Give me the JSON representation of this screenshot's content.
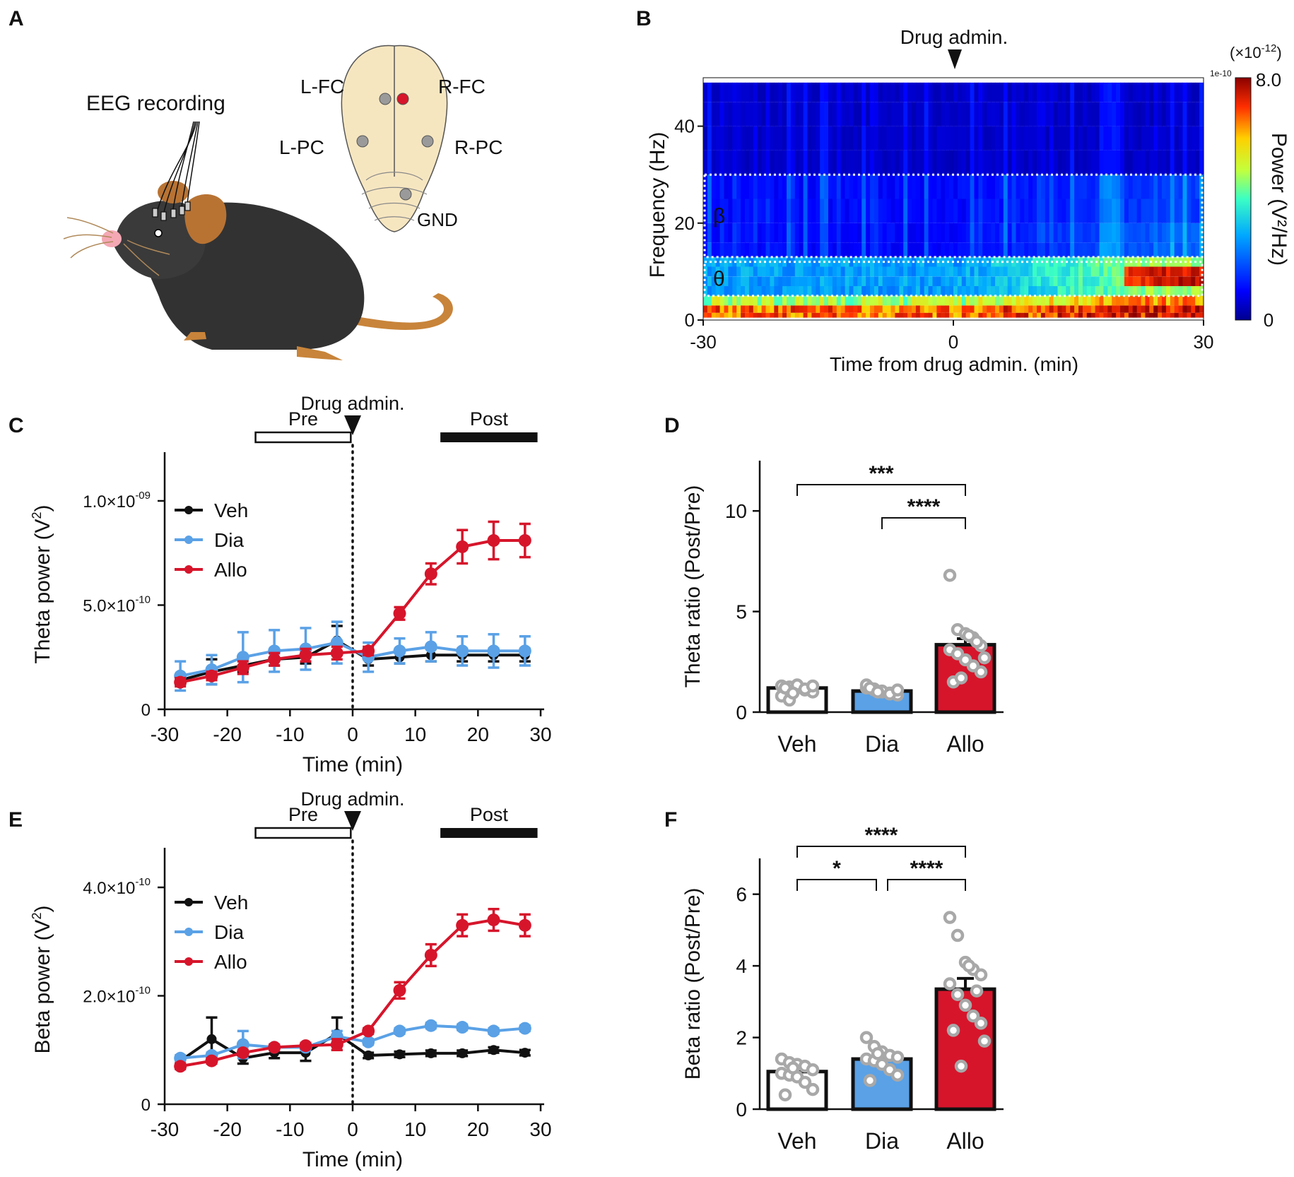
{
  "panel_letters": {
    "a": "A",
    "b": "B",
    "c": "C",
    "d": "D",
    "e": "E",
    "f": "F"
  },
  "colors": {
    "veh": "#111111",
    "dia": "#5aa1e6",
    "allo": "#d6152b",
    "gray_point": "#a8a8a8"
  },
  "panel_a": {
    "title": "EEG recording",
    "electrodes": {
      "lfc": "L-FC",
      "rfc": "R-FC",
      "lpc": "L-PC",
      "rpc": "R-PC",
      "gnd": "GND"
    }
  },
  "chart_data": [
    {
      "panel": "B",
      "type": "heatmap",
      "annotation": "Drug admin.",
      "xlabel": "Time from drug admin. (min)",
      "ylabel": "Frequency (Hz)",
      "xlim": [
        -30,
        30
      ],
      "ylim": [
        0,
        50
      ],
      "xticks": [
        "-30",
        "0",
        "30"
      ],
      "yticks": [
        "0",
        "20",
        "40"
      ],
      "colorbar": {
        "label": "Power (V²/Hz)",
        "exponent_label": "(×10",
        "exponent_power": "-12",
        "exponent_close": ")",
        "offset_label": "1e-10",
        "max_label": "8.0",
        "min_label": "0",
        "range": [
          0,
          8.0
        ]
      },
      "bands": [
        {
          "name": "β",
          "range_hz": [
            13,
            30
          ]
        },
        {
          "name": "θ",
          "range_hz": [
            5,
            12
          ]
        }
      ]
    },
    {
      "panel": "C",
      "type": "line",
      "annotation": "Drug admin.",
      "pre_label": "Pre",
      "post_label": "Post",
      "ylabel": "Theta power (V",
      "ylabel_sup": "2",
      "ylabel_end": ")",
      "xlabel": "Time (min)",
      "xlim": [
        -30,
        30
      ],
      "ylim": [
        0,
        1.2e-09
      ],
      "xticks": [
        "-30",
        "-20",
        "-10",
        "0",
        "10",
        "20",
        "30"
      ],
      "yticks": [
        {
          "base": "0",
          "exp": ""
        },
        {
          "base": "5.0×10",
          "exp": "-10"
        },
        {
          "base": "1.0×10",
          "exp": "-09"
        }
      ],
      "x": [
        -27.5,
        -22.5,
        -17.5,
        -12.5,
        -7.5,
        -2.5,
        2.5,
        7.5,
        12.5,
        17.5,
        22.5,
        27.5
      ],
      "series": [
        {
          "name": "Veh",
          "values": [
            1.4e-10,
            1.8e-10,
            2.1e-10,
            2.4e-10,
            2.5e-10,
            3.3e-10,
            2.4e-10,
            2.5e-10,
            2.6e-10,
            2.6e-10,
            2.6e-10,
            2.6e-10
          ],
          "errors": [
            2e-11,
            6e-11,
            3e-11,
            3e-11,
            3e-11,
            7e-11,
            3e-11,
            3e-11,
            3e-11,
            3e-11,
            3e-11,
            3e-11
          ]
        },
        {
          "name": "Dia",
          "values": [
            1.6e-10,
            1.9e-10,
            2.5e-10,
            2.8e-10,
            2.9e-10,
            3.2e-10,
            2.5e-10,
            2.8e-10,
            3e-10,
            2.8e-10,
            2.8e-10,
            2.8e-10
          ],
          "errors": [
            7e-11,
            7e-11,
            1.2e-10,
            1e-10,
            1e-10,
            1e-10,
            7e-11,
            6e-11,
            7e-11,
            7e-11,
            8e-11,
            7e-11
          ]
        },
        {
          "name": "Allo",
          "values": [
            1.3e-10,
            1.6e-10,
            2e-10,
            2.4e-10,
            2.6e-10,
            2.7e-10,
            2.8e-10,
            4.6e-10,
            6.5e-10,
            7.8e-10,
            8.1e-10,
            8.1e-10
          ],
          "errors": [
            2e-11,
            2e-11,
            3e-11,
            3e-11,
            3e-11,
            3e-11,
            2e-11,
            3e-11,
            5e-11,
            8e-11,
            9e-11,
            8e-11
          ]
        }
      ]
    },
    {
      "panel": "D",
      "type": "bar",
      "ylabel": "Theta ratio (Post/Pre)",
      "ylim": [
        0,
        12.5
      ],
      "yticks": [
        "0",
        "5",
        "10"
      ],
      "categories": [
        "Veh",
        "Dia",
        "Allo"
      ],
      "values": [
        1.2,
        1.05,
        3.35
      ],
      "errors": [
        0.05,
        0.04,
        0.3
      ],
      "points": [
        [
          1.3,
          1.25,
          1.2,
          1.1,
          1.0,
          0.8,
          0.6,
          1.35,
          1.15,
          1.3,
          1.2,
          0.95
        ],
        [
          1.2,
          1.1,
          1.0,
          0.95,
          0.85,
          1.35,
          1.15,
          1.05,
          0.9,
          1.1,
          1.2,
          1.0
        ],
        [
          6.8,
          4.1,
          3.9,
          3.7,
          3.3,
          3.1,
          2.9,
          2.6,
          2.3,
          2.0,
          1.5,
          1.7,
          3.8,
          3.5,
          2.7
        ]
      ],
      "significance": [
        {
          "pair": [
            0,
            2
          ],
          "label": "***"
        },
        {
          "pair": [
            1,
            2
          ],
          "label": "****"
        }
      ]
    },
    {
      "panel": "E",
      "type": "line",
      "annotation": "Drug admin.",
      "pre_label": "Pre",
      "post_label": "Post",
      "ylabel": "Beta power (V",
      "ylabel_sup": "2",
      "ylabel_end": ")",
      "xlabel": "Time (min)",
      "xlim": [
        -30,
        30
      ],
      "ylim": [
        0,
        4.6e-10
      ],
      "xticks": [
        "-30",
        "-20",
        "-10",
        "0",
        "10",
        "20",
        "30"
      ],
      "yticks": [
        {
          "base": "0",
          "exp": ""
        },
        {
          "base": "2.0×10",
          "exp": "-10"
        },
        {
          "base": "4.0×10",
          "exp": "-10"
        }
      ],
      "x": [
        -27.5,
        -22.5,
        -17.5,
        -12.5,
        -7.5,
        -2.5,
        2.5,
        7.5,
        12.5,
        17.5,
        22.5,
        27.5
      ],
      "series": [
        {
          "name": "Veh",
          "values": [
            8e-11,
            1.2e-10,
            8.5e-11,
            9.5e-11,
            9.5e-11,
            1.3e-10,
            9e-11,
            9.2e-11,
            9.4e-11,
            9.4e-11,
            1e-10,
            9.5e-11
          ],
          "errors": [
            5e-12,
            4e-11,
            1e-11,
            1e-11,
            1.5e-11,
            3e-11,
            5e-12,
            5e-12,
            5e-12,
            5e-12,
            5e-12,
            5e-12
          ]
        },
        {
          "name": "Dia",
          "values": [
            8.5e-11,
            9e-11,
            1.1e-10,
            1.05e-10,
            1.05e-10,
            1.25e-10,
            1.15e-10,
            1.35e-10,
            1.45e-10,
            1.42e-10,
            1.35e-10,
            1.4e-10
          ],
          "errors": [
            5e-12,
            5e-12,
            2.5e-11,
            5e-12,
            5e-12,
            1e-11,
            5e-12,
            5e-12,
            5e-12,
            5e-12,
            5e-12,
            5e-12
          ]
        },
        {
          "name": "Allo",
          "values": [
            7e-11,
            8e-11,
            9.5e-11,
            1.05e-10,
            1.08e-10,
            1.1e-10,
            1.35e-10,
            2.1e-10,
            2.75e-10,
            3.3e-10,
            3.4e-10,
            3.3e-10
          ],
          "errors": [
            5e-12,
            5e-12,
            5e-12,
            5e-12,
            5e-12,
            1e-11,
            5e-12,
            1.5e-11,
            2e-11,
            2e-11,
            2e-11,
            2e-11
          ]
        }
      ]
    },
    {
      "panel": "F",
      "type": "bar",
      "ylabel": "Beta ratio (Post/Pre)",
      "ylim": [
        0,
        7
      ],
      "yticks": [
        "0",
        "2",
        "4",
        "6"
      ],
      "categories": [
        "Veh",
        "Dia",
        "Allo"
      ],
      "values": [
        1.05,
        1.4,
        3.35
      ],
      "errors": [
        0.08,
        0.1,
        0.3
      ],
      "points": [
        [
          1.4,
          1.3,
          1.25,
          1.2,
          1.1,
          1.0,
          0.95,
          0.9,
          0.75,
          0.55,
          0.4,
          1.15
        ],
        [
          2.0,
          1.75,
          1.6,
          1.5,
          1.45,
          1.4,
          1.35,
          1.25,
          1.1,
          0.95,
          0.8,
          1.55
        ],
        [
          5.35,
          4.85,
          4.1,
          3.9,
          3.75,
          3.5,
          3.2,
          2.9,
          2.6,
          2.4,
          2.2,
          1.2,
          4.0,
          3.3,
          1.9
        ]
      ],
      "significance": [
        {
          "pair": [
            0,
            2
          ],
          "label": "****"
        },
        {
          "pair": [
            0,
            1
          ],
          "label": "*"
        },
        {
          "pair": [
            1,
            2
          ],
          "label": "****"
        }
      ]
    }
  ]
}
